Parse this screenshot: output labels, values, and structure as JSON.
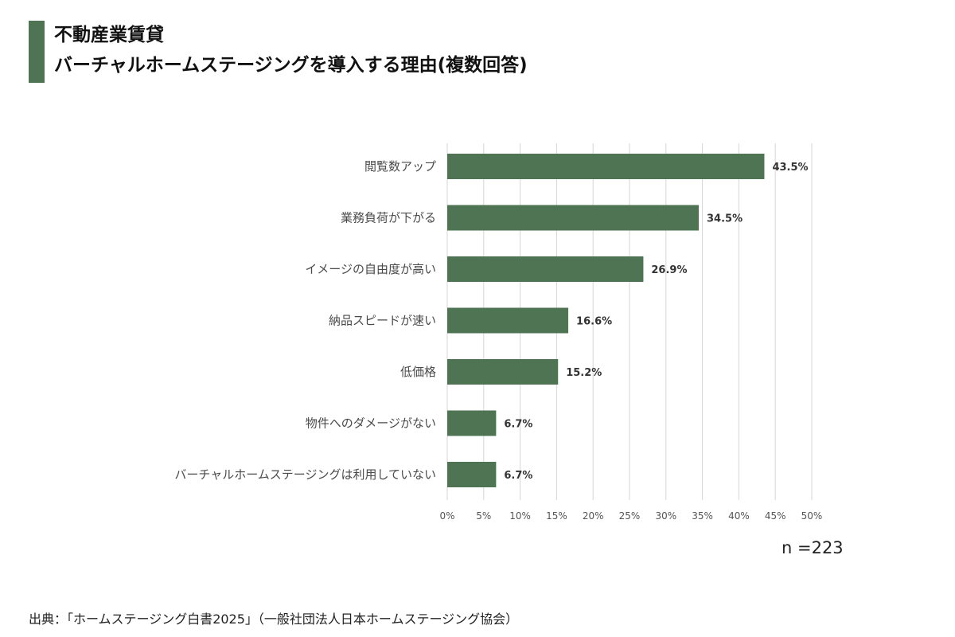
{
  "colors": {
    "accent": "#4e7454",
    "bar": "#4e7454",
    "grid": "#d6d6d6"
  },
  "title": {
    "line1": "不動産業賃貸",
    "line2": "バーチャルホームステージングを導入する理由(複数回答)"
  },
  "chart_data": {
    "type": "bar",
    "orientation": "horizontal",
    "categories": [
      "閲覧数アップ",
      "業務負荷が下がる",
      "イメージの自由度が高い",
      "納品スピードが速い",
      "低価格",
      "物件へのダメージがない",
      "バーチャルホームステージングは利用していない"
    ],
    "values": [
      43.5,
      34.5,
      26.9,
      16.6,
      15.2,
      6.7,
      6.7
    ],
    "value_labels": [
      "43.5%",
      "34.5%",
      "26.9%",
      "16.6%",
      "15.2%",
      "6.7%",
      "6.7%"
    ],
    "xlim": [
      0,
      50
    ],
    "xticks": [
      0,
      5,
      10,
      15,
      20,
      25,
      30,
      35,
      40,
      45,
      50
    ],
    "xtick_labels": [
      "0%",
      "5%",
      "10%",
      "15%",
      "20%",
      "25%",
      "30%",
      "35%",
      "40%",
      "45%",
      "50%"
    ],
    "grid": true
  },
  "sample_size": "n =223",
  "source": "出典：「ホームステージング白書2025」（一般社団法人日本ホームステージング協会）"
}
